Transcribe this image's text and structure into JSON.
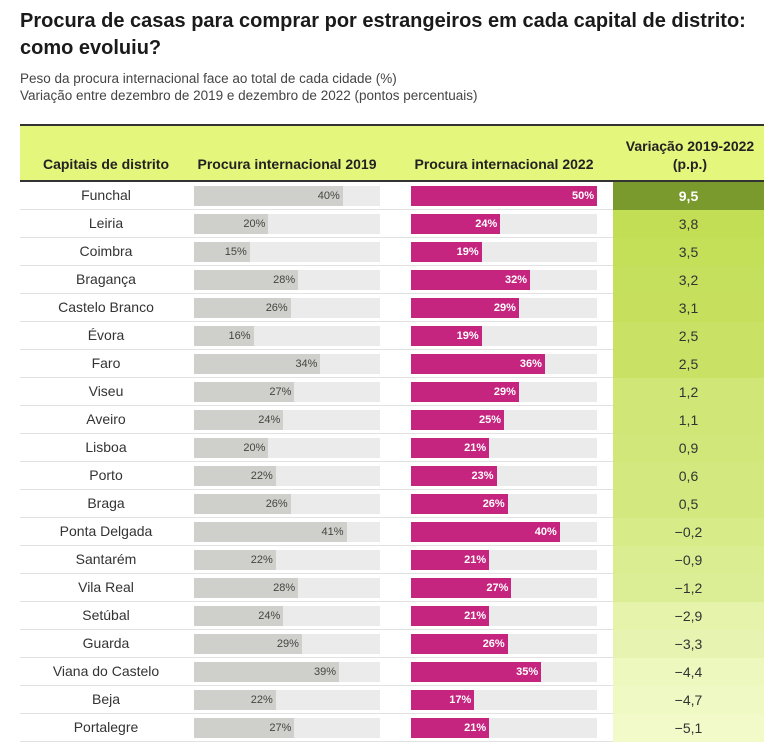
{
  "title": "Procura de casas para comprar por estrangeiros em cada capital de distrito: como evoluiu?",
  "subtitle_line1": "Peso da procura internacional face ao total de cada cidade (%)",
  "subtitle_line2": "Variação entre dezembro de 2019 e dezembro de 2022 (pontos percentuais)",
  "headers": {
    "name": "Capitais de distrito",
    "c2019": "Procura internacional 2019",
    "c2022": "Procura internacional 2022",
    "variation": "Variação 2019-2022 (p.p.)"
  },
  "colors": {
    "header_bg": "#e4f67c",
    "bar_2019": "#cfcfcb",
    "bar_2022": "#c5247f",
    "track": "#ebebeb",
    "var_highest": "#7a9a2e"
  },
  "chart_data": {
    "type": "table",
    "title": "Procura de casas para comprar por estrangeiros em cada capital de distrito: como evoluiu?",
    "columns": [
      "Capitais de distrito",
      "Procura internacional 2019",
      "Procura internacional 2022",
      "Variação 2019-2022 (p.p.)"
    ],
    "bar_max": 50,
    "rows": [
      {
        "name": "Funchal",
        "v2019": 40,
        "v2022": 50,
        "var": "9,5",
        "var_num": 9.5
      },
      {
        "name": "Leiria",
        "v2019": 20,
        "v2022": 24,
        "var": "3,8",
        "var_num": 3.8
      },
      {
        "name": "Coimbra",
        "v2019": 15,
        "v2022": 19,
        "var": "3,5",
        "var_num": 3.5
      },
      {
        "name": "Bragança",
        "v2019": 28,
        "v2022": 32,
        "var": "3,2",
        "var_num": 3.2
      },
      {
        "name": "Castelo Branco",
        "v2019": 26,
        "v2022": 29,
        "var": "3,1",
        "var_num": 3.1
      },
      {
        "name": "Évora",
        "v2019": 16,
        "v2022": 19,
        "var": "2,5",
        "var_num": 2.5
      },
      {
        "name": "Faro",
        "v2019": 34,
        "v2022": 36,
        "var": "2,5",
        "var_num": 2.5
      },
      {
        "name": "Viseu",
        "v2019": 27,
        "v2022": 29,
        "var": "1,2",
        "var_num": 1.2
      },
      {
        "name": "Aveiro",
        "v2019": 24,
        "v2022": 25,
        "var": "1,1",
        "var_num": 1.1
      },
      {
        "name": "Lisboa",
        "v2019": 20,
        "v2022": 21,
        "var": "0,9",
        "var_num": 0.9
      },
      {
        "name": "Porto",
        "v2019": 22,
        "v2022": 23,
        "var": "0,6",
        "var_num": 0.6
      },
      {
        "name": "Braga",
        "v2019": 26,
        "v2022": 26,
        "var": "0,5",
        "var_num": 0.5
      },
      {
        "name": "Ponta Delgada",
        "v2019": 41,
        "v2022": 40,
        "var": "−0,2",
        "var_num": -0.2
      },
      {
        "name": "Santarém",
        "v2019": 22,
        "v2022": 21,
        "var": "−0,9",
        "var_num": -0.9
      },
      {
        "name": "Vila Real",
        "v2019": 28,
        "v2022": 27,
        "var": "−1,2",
        "var_num": -1.2
      },
      {
        "name": "Setúbal",
        "v2019": 24,
        "v2022": 21,
        "var": "−2,9",
        "var_num": -2.9
      },
      {
        "name": "Guarda",
        "v2019": 29,
        "v2022": 26,
        "var": "−3,3",
        "var_num": -3.3
      },
      {
        "name": "Viana do Castelo",
        "v2019": 39,
        "v2022": 35,
        "var": "−4,4",
        "var_num": -4.4
      },
      {
        "name": "Beja",
        "v2019": 22,
        "v2022": 17,
        "var": "−4,7",
        "var_num": -4.7
      },
      {
        "name": "Portalegre",
        "v2019": 27,
        "v2022": 21,
        "var": "−5,1",
        "var_num": -5.1
      }
    ]
  }
}
